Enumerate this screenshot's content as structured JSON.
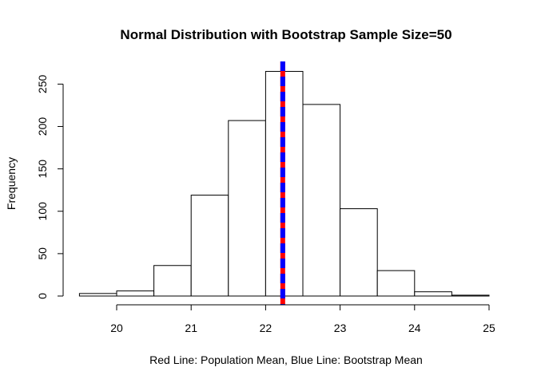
{
  "chart_data": {
    "type": "bar",
    "title": "Normal Distribution with Bootstrap Sample Size=50",
    "xlabel": "Red Line:  Population Mean,  Blue Line: Bootstrap Mean",
    "ylabel": "Frequency",
    "bins": [
      {
        "x0": 19.5,
        "x1": 20.0,
        "count": 3
      },
      {
        "x0": 20.0,
        "x1": 20.5,
        "count": 6
      },
      {
        "x0": 20.5,
        "x1": 21.0,
        "count": 36
      },
      {
        "x0": 21.0,
        "x1": 21.5,
        "count": 119
      },
      {
        "x0": 21.5,
        "x1": 22.0,
        "count": 207
      },
      {
        "x0": 22.0,
        "x1": 22.5,
        "count": 265
      },
      {
        "x0": 22.5,
        "x1": 23.0,
        "count": 226
      },
      {
        "x0": 23.0,
        "x1": 23.5,
        "count": 103
      },
      {
        "x0": 23.5,
        "x1": 24.0,
        "count": 30
      },
      {
        "x0": 24.0,
        "x1": 24.5,
        "count": 5
      },
      {
        "x0": 24.5,
        "x1": 25.0,
        "count": 1
      }
    ],
    "xlim": [
      19.5,
      25.0
    ],
    "ylim": [
      0,
      275
    ],
    "xticks": [
      20,
      21,
      22,
      23,
      24,
      25
    ],
    "yticks": [
      0,
      50,
      100,
      150,
      200,
      250
    ],
    "vlines": [
      {
        "name": "Population Mean",
        "x": 22.23,
        "color": "#ff0000",
        "style": "solid"
      },
      {
        "name": "Bootstrap Mean",
        "x": 22.23,
        "color": "#0000ff",
        "style": "dashed"
      }
    ],
    "bar_fill": "#ffffff",
    "bar_stroke": "#000000",
    "grid": false
  }
}
